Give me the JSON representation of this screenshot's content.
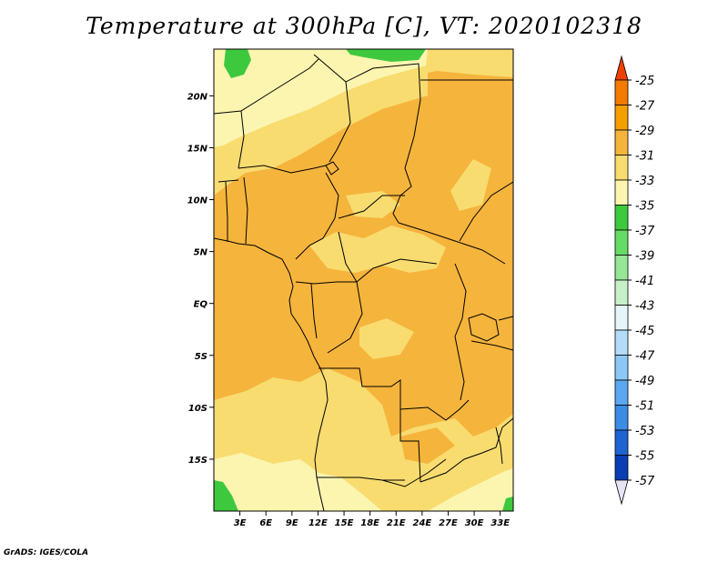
{
  "title": "Temperature at 300hPa [C], VT: 2020102318",
  "footer": "GrADS: IGES/COLA",
  "map": {
    "lon_range": [
      0,
      34.5
    ],
    "lat_range": [
      -20,
      24.5
    ],
    "x_ticks": [
      "3E",
      "6E",
      "9E",
      "12E",
      "15E",
      "18E",
      "21E",
      "24E",
      "27E",
      "30E",
      "33E"
    ],
    "x_tick_values": [
      3,
      6,
      9,
      12,
      15,
      18,
      21,
      24,
      27,
      30,
      33
    ],
    "y_ticks": [
      "20N",
      "15N",
      "10N",
      "5N",
      "EQ",
      "5S",
      "10S",
      "15S"
    ],
    "y_tick_values": [
      20,
      15,
      10,
      5,
      0,
      -5,
      -10,
      -15
    ]
  },
  "colorbar": {
    "labels": [
      "-25",
      "-27",
      "-29",
      "-31",
      "-33",
      "-35",
      "-37",
      "-39",
      "-41",
      "-43",
      "-45",
      "-47",
      "-49",
      "-51",
      "-53",
      "-55",
      "-57"
    ],
    "colors": [
      "#f04000",
      "#f57a00",
      "#f5a000",
      "#f5b43c",
      "#f8dc70",
      "#fcf5b0",
      "#3ec83e",
      "#66dc66",
      "#96e696",
      "#c8f0c8",
      "#e4f6fa",
      "#b4dcf8",
      "#8cc8f5",
      "#5ca8f0",
      "#3c8ce6",
      "#1e64d2",
      "#0a3cb4",
      "#000a78"
    ],
    "top_arrow_color": "#f04000",
    "bottom_arrow_color": "#e4e4f5"
  },
  "field_colors": {
    "warm_main": "#f5b43c",
    "warm_light": "#f8dc70",
    "cool_yellow": "#fcf5b0",
    "green": "#3ec83e"
  }
}
